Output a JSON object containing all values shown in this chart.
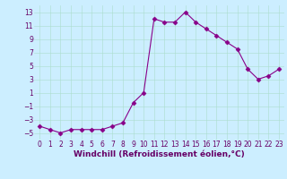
{
  "x": [
    0,
    1,
    2,
    3,
    4,
    5,
    6,
    7,
    8,
    9,
    10,
    11,
    12,
    13,
    14,
    15,
    16,
    17,
    18,
    19,
    20,
    21,
    22,
    23
  ],
  "y": [
    -4.0,
    -4.5,
    -5.0,
    -4.5,
    -4.5,
    -4.5,
    -4.5,
    -4.0,
    -3.5,
    -0.5,
    1.0,
    12.0,
    11.5,
    11.5,
    13.0,
    11.5,
    10.5,
    9.5,
    8.5,
    7.5,
    4.5,
    3.0,
    3.5,
    4.5
  ],
  "line_color": "#880088",
  "marker": "D",
  "marker_size": 2.5,
  "line_width": 0.8,
  "xlabel": "Windchill (Refroidissement éolien,°C)",
  "xlim_min": -0.5,
  "xlim_max": 23.5,
  "ylim_min": -6,
  "ylim_max": 14,
  "yticks": [
    -5,
    -3,
    -1,
    1,
    3,
    5,
    7,
    9,
    11,
    13
  ],
  "xticks": [
    0,
    1,
    2,
    3,
    4,
    5,
    6,
    7,
    8,
    9,
    10,
    11,
    12,
    13,
    14,
    15,
    16,
    17,
    18,
    19,
    20,
    21,
    22,
    23
  ],
  "background_color": "#cceeff",
  "grid_color": "#aaddcc",
  "tick_color": "#660066",
  "label_color": "#660066",
  "xlabel_fontsize": 6.5,
  "tick_fontsize": 5.5
}
